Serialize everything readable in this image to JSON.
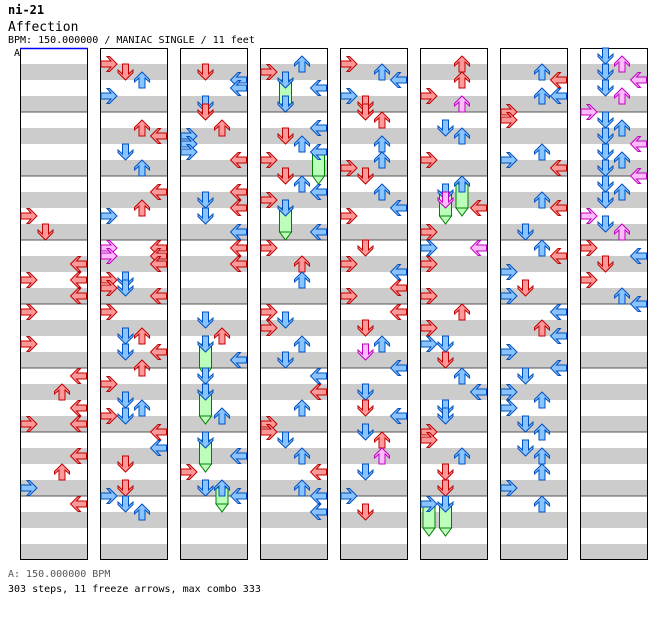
{
  "header": {
    "id": "ni-21",
    "title": "Affection",
    "meta": "BPM: 150.000000 / MANIAC SINGLE / 11 feet",
    "bpm_marker": "A"
  },
  "footer": {
    "bpm": "A: 150.000000 BPM",
    "stats": "303 steps, 11 freeze arrows, max combo 333"
  },
  "colors": {
    "red_arrow": "#ff9999",
    "blue_arrow": "#88c4ff",
    "pink_arrow": "#ffbbff",
    "freeze": "#bbffbb",
    "stripe": "#cccccc"
  },
  "chart_data": {
    "type": "step-chart",
    "lanes": [
      "left",
      "down",
      "up",
      "right"
    ],
    "columns": 8,
    "beats_per_column": 16,
    "arrows": [
      [
        0,
        20,
        0,
        "r"
      ],
      [
        0,
        22,
        1,
        "r"
      ],
      [
        0,
        26,
        3,
        "r"
      ],
      [
        0,
        28,
        0,
        "r"
      ],
      [
        0,
        28,
        3,
        "r"
      ],
      [
        0,
        30,
        3,
        "r"
      ],
      [
        0,
        32,
        0,
        "r"
      ],
      [
        0,
        36,
        0,
        "r"
      ],
      [
        0,
        40,
        3,
        "r"
      ],
      [
        0,
        42,
        2,
        "r"
      ],
      [
        0,
        44,
        3,
        "r"
      ],
      [
        0,
        46,
        0,
        "r"
      ],
      [
        0,
        46,
        3,
        "r"
      ],
      [
        0,
        50,
        3,
        "r"
      ],
      [
        0,
        52,
        2,
        "r"
      ],
      [
        0,
        54,
        0,
        "b"
      ],
      [
        0,
        56,
        3,
        "r"
      ],
      [
        1,
        1,
        0,
        "r"
      ],
      [
        1,
        2,
        1,
        "r"
      ],
      [
        1,
        3,
        2,
        "b"
      ],
      [
        1,
        5,
        0,
        "b"
      ],
      [
        1,
        9,
        2,
        "r"
      ],
      [
        1,
        10,
        3,
        "r"
      ],
      [
        1,
        12,
        1,
        "b"
      ],
      [
        1,
        14,
        2,
        "b"
      ],
      [
        1,
        17,
        3,
        "r"
      ],
      [
        1,
        19,
        2,
        "r"
      ],
      [
        1,
        20,
        0,
        "b"
      ],
      [
        1,
        24,
        3,
        "r"
      ],
      [
        1,
        24,
        0,
        "p"
      ],
      [
        1,
        25,
        3,
        "r"
      ],
      [
        1,
        25,
        0,
        "p"
      ],
      [
        1,
        26,
        3,
        "r"
      ],
      [
        1,
        28,
        1,
        "b"
      ],
      [
        1,
        28,
        0,
        "r"
      ],
      [
        1,
        29,
        0,
        "r"
      ],
      [
        1,
        29,
        1,
        "b"
      ],
      [
        1,
        30,
        3,
        "r"
      ],
      [
        1,
        32,
        0,
        "r"
      ],
      [
        1,
        35,
        2,
        "r"
      ],
      [
        1,
        35,
        1,
        "b"
      ],
      [
        1,
        37,
        1,
        "b"
      ],
      [
        1,
        37,
        3,
        "r"
      ],
      [
        1,
        39,
        2,
        "r"
      ],
      [
        1,
        41,
        0,
        "r"
      ],
      [
        1,
        43,
        1,
        "b"
      ],
      [
        1,
        44,
        2,
        "b"
      ],
      [
        1,
        45,
        1,
        "b"
      ],
      [
        1,
        45,
        0,
        "r"
      ],
      [
        1,
        47,
        3,
        "r"
      ],
      [
        1,
        49,
        3,
        "b"
      ],
      [
        1,
        51,
        1,
        "r"
      ],
      [
        1,
        54,
        1,
        "r"
      ],
      [
        1,
        55,
        0,
        "b"
      ],
      [
        1,
        56,
        1,
        "b"
      ],
      [
        1,
        57,
        2,
        "b"
      ],
      [
        2,
        2,
        1,
        "r"
      ],
      [
        2,
        3,
        3,
        "b"
      ],
      [
        2,
        4,
        3,
        "b"
      ],
      [
        2,
        6,
        1,
        "b"
      ],
      [
        2,
        7,
        1,
        "r"
      ],
      [
        2,
        9,
        2,
        "r"
      ],
      [
        2,
        10,
        0,
        "b"
      ],
      [
        2,
        11,
        0,
        "b"
      ],
      [
        2,
        12,
        0,
        "b"
      ],
      [
        2,
        13,
        3,
        "r"
      ],
      [
        2,
        17,
        3,
        "r"
      ],
      [
        2,
        18,
        1,
        "b"
      ],
      [
        2,
        19,
        3,
        "r"
      ],
      [
        2,
        20,
        1,
        "b"
      ],
      [
        2,
        22,
        3,
        "b"
      ],
      [
        2,
        24,
        3,
        "r"
      ],
      [
        2,
        26,
        3,
        "r"
      ],
      [
        2,
        33,
        1,
        "b"
      ],
      [
        2,
        35,
        2,
        "r"
      ],
      [
        2,
        36,
        1,
        "f",
        3
      ],
      [
        2,
        38,
        3,
        "b"
      ],
      [
        2,
        40,
        1,
        "b"
      ],
      [
        2,
        42,
        1,
        "f",
        3
      ],
      [
        2,
        45,
        2,
        "b"
      ],
      [
        2,
        48,
        1,
        "f",
        3
      ],
      [
        2,
        50,
        3,
        "b"
      ],
      [
        2,
        52,
        0,
        "r"
      ],
      [
        2,
        54,
        2,
        "f",
        2
      ],
      [
        2,
        54,
        1,
        "b"
      ],
      [
        2,
        55,
        3,
        "b"
      ],
      [
        3,
        1,
        2,
        "b"
      ],
      [
        3,
        2,
        0,
        "r"
      ],
      [
        3,
        3,
        1,
        "f",
        3
      ],
      [
        3,
        4,
        3,
        "b"
      ],
      [
        3,
        6,
        1,
        "b"
      ],
      [
        3,
        9,
        3,
        "b"
      ],
      [
        3,
        10,
        1,
        "r"
      ],
      [
        3,
        11,
        2,
        "b"
      ],
      [
        3,
        12,
        3,
        "f",
        3
      ],
      [
        3,
        13,
        0,
        "r"
      ],
      [
        3,
        15,
        1,
        "r"
      ],
      [
        3,
        16,
        2,
        "b"
      ],
      [
        3,
        17,
        3,
        "b"
      ],
      [
        3,
        18,
        0,
        "r"
      ],
      [
        3,
        19,
        1,
        "f",
        3
      ],
      [
        3,
        22,
        3,
        "b"
      ],
      [
        3,
        24,
        0,
        "r"
      ],
      [
        3,
        26,
        2,
        "r"
      ],
      [
        3,
        28,
        2,
        "b"
      ],
      [
        3,
        32,
        0,
        "r"
      ],
      [
        3,
        33,
        1,
        "b"
      ],
      [
        3,
        34,
        0,
        "r"
      ],
      [
        3,
        36,
        2,
        "b"
      ],
      [
        3,
        38,
        1,
        "b"
      ],
      [
        3,
        40,
        3,
        "b"
      ],
      [
        3,
        42,
        3,
        "r"
      ],
      [
        3,
        44,
        2,
        "b"
      ],
      [
        3,
        46,
        0,
        "r"
      ],
      [
        3,
        47,
        0,
        "r"
      ],
      [
        3,
        48,
        1,
        "b"
      ],
      [
        3,
        50,
        2,
        "b"
      ],
      [
        3,
        52,
        3,
        "r"
      ],
      [
        3,
        54,
        2,
        "b"
      ],
      [
        3,
        55,
        3,
        "b"
      ],
      [
        3,
        57,
        3,
        "b"
      ]
    ],
    "arrows_part2": [
      [
        4,
        1,
        0,
        "r"
      ],
      [
        4,
        2,
        2,
        "b"
      ],
      [
        4,
        3,
        3,
        "b"
      ],
      [
        4,
        5,
        0,
        "b"
      ],
      [
        4,
        6,
        1,
        "r"
      ],
      [
        4,
        7,
        1,
        "r"
      ],
      [
        4,
        8,
        2,
        "r"
      ],
      [
        4,
        11,
        2,
        "b"
      ],
      [
        4,
        13,
        2,
        "b"
      ],
      [
        4,
        14,
        0,
        "r"
      ],
      [
        4,
        15,
        1,
        "r"
      ],
      [
        4,
        17,
        2,
        "b"
      ],
      [
        4,
        19,
        3,
        "b"
      ],
      [
        4,
        20,
        0,
        "r"
      ],
      [
        4,
        24,
        1,
        "r"
      ],
      [
        4,
        26,
        0,
        "r"
      ],
      [
        4,
        27,
        3,
        "b"
      ],
      [
        4,
        29,
        3,
        "r"
      ],
      [
        4,
        30,
        0,
        "r"
      ],
      [
        4,
        32,
        3,
        "r"
      ],
      [
        4,
        34,
        1,
        "r"
      ],
      [
        4,
        36,
        2,
        "b"
      ],
      [
        4,
        37,
        1,
        "p"
      ],
      [
        4,
        39,
        3,
        "b"
      ],
      [
        4,
        42,
        1,
        "b"
      ],
      [
        4,
        44,
        1,
        "r"
      ],
      [
        4,
        45,
        3,
        "b"
      ],
      [
        4,
        47,
        1,
        "b"
      ],
      [
        4,
        48,
        2,
        "r"
      ],
      [
        4,
        50,
        2,
        "p"
      ],
      [
        4,
        52,
        1,
        "b"
      ],
      [
        4,
        55,
        0,
        "b"
      ],
      [
        4,
        57,
        1,
        "r"
      ],
      [
        5,
        1,
        2,
        "r"
      ],
      [
        5,
        3,
        2,
        "r"
      ],
      [
        5,
        5,
        0,
        "r"
      ],
      [
        5,
        6,
        2,
        "p"
      ],
      [
        5,
        9,
        1,
        "b"
      ],
      [
        5,
        10,
        2,
        "b"
      ],
      [
        5,
        13,
        0,
        "r"
      ],
      [
        5,
        16,
        2,
        "f",
        3
      ],
      [
        5,
        17,
        1,
        "f",
        3
      ],
      [
        5,
        18,
        1,
        "p"
      ],
      [
        5,
        19,
        3,
        "r"
      ],
      [
        5,
        22,
        0,
        "r"
      ],
      [
        5,
        24,
        0,
        "b"
      ],
      [
        5,
        24,
        3,
        "p"
      ],
      [
        5,
        26,
        0,
        "r"
      ],
      [
        5,
        30,
        0,
        "r"
      ],
      [
        5,
        32,
        2,
        "r"
      ],
      [
        5,
        34,
        0,
        "r"
      ],
      [
        5,
        36,
        1,
        "b"
      ],
      [
        5,
        36,
        0,
        "b"
      ],
      [
        5,
        38,
        1,
        "r"
      ],
      [
        5,
        40,
        2,
        "b"
      ],
      [
        5,
        42,
        3,
        "b"
      ],
      [
        5,
        44,
        1,
        "b"
      ],
      [
        5,
        45,
        1,
        "b"
      ],
      [
        5,
        47,
        0,
        "r"
      ],
      [
        5,
        48,
        0,
        "r"
      ],
      [
        5,
        50,
        2,
        "b"
      ],
      [
        5,
        52,
        1,
        "r"
      ],
      [
        5,
        54,
        1,
        "r"
      ],
      [
        5,
        56,
        0,
        "f",
        3
      ],
      [
        5,
        56,
        1,
        "f",
        3
      ],
      [
        6,
        2,
        2,
        "b"
      ],
      [
        6,
        3,
        3,
        "r"
      ],
      [
        6,
        5,
        2,
        "b"
      ],
      [
        6,
        5,
        3,
        "b"
      ],
      [
        6,
        7,
        0,
        "r"
      ],
      [
        6,
        8,
        0,
        "r"
      ],
      [
        6,
        12,
        2,
        "b"
      ],
      [
        6,
        13,
        0,
        "b"
      ],
      [
        6,
        14,
        3,
        "r"
      ],
      [
        6,
        18,
        2,
        "b"
      ],
      [
        6,
        19,
        3,
        "r"
      ],
      [
        6,
        22,
        1,
        "b"
      ],
      [
        6,
        24,
        2,
        "b"
      ],
      [
        6,
        25,
        3,
        "r"
      ],
      [
        6,
        27,
        0,
        "b"
      ],
      [
        6,
        29,
        1,
        "r"
      ],
      [
        6,
        30,
        0,
        "b"
      ],
      [
        6,
        32,
        3,
        "b"
      ],
      [
        6,
        34,
        2,
        "r"
      ],
      [
        6,
        35,
        3,
        "b"
      ],
      [
        6,
        37,
        0,
        "b"
      ],
      [
        6,
        39,
        3,
        "b"
      ],
      [
        6,
        40,
        1,
        "b"
      ],
      [
        6,
        42,
        0,
        "b"
      ],
      [
        6,
        43,
        2,
        "b"
      ],
      [
        6,
        44,
        0,
        "b"
      ],
      [
        6,
        46,
        1,
        "b"
      ],
      [
        6,
        47,
        2,
        "b"
      ],
      [
        6,
        49,
        1,
        "b"
      ],
      [
        6,
        50,
        2,
        "b"
      ],
      [
        6,
        52,
        2,
        "b"
      ],
      [
        6,
        54,
        0,
        "b"
      ],
      [
        6,
        56,
        2,
        "b"
      ],
      [
        7,
        0,
        1,
        "b"
      ],
      [
        7,
        1,
        2,
        "p"
      ],
      [
        7,
        2,
        1,
        "b"
      ],
      [
        7,
        3,
        3,
        "p"
      ],
      [
        7,
        4,
        1,
        "b"
      ],
      [
        7,
        5,
        2,
        "p"
      ],
      [
        7,
        7,
        0,
        "p"
      ],
      [
        7,
        8,
        1,
        "b"
      ],
      [
        7,
        9,
        2,
        "b"
      ],
      [
        7,
        10,
        1,
        "b"
      ],
      [
        7,
        11,
        3,
        "p"
      ],
      [
        7,
        12,
        1,
        "b"
      ],
      [
        7,
        13,
        2,
        "b"
      ],
      [
        7,
        14,
        1,
        "b"
      ],
      [
        7,
        15,
        3,
        "p"
      ],
      [
        7,
        16,
        1,
        "b"
      ],
      [
        7,
        17,
        2,
        "b"
      ],
      [
        7,
        18,
        1,
        "b"
      ],
      [
        7,
        20,
        0,
        "p"
      ],
      [
        7,
        21,
        1,
        "b"
      ],
      [
        7,
        22,
        2,
        "p"
      ],
      [
        7,
        24,
        0,
        "r"
      ],
      [
        7,
        25,
        3,
        "b"
      ],
      [
        7,
        26,
        1,
        "r"
      ],
      [
        7,
        28,
        0,
        "r"
      ],
      [
        7,
        30,
        2,
        "b"
      ],
      [
        7,
        31,
        3,
        "b"
      ]
    ]
  }
}
